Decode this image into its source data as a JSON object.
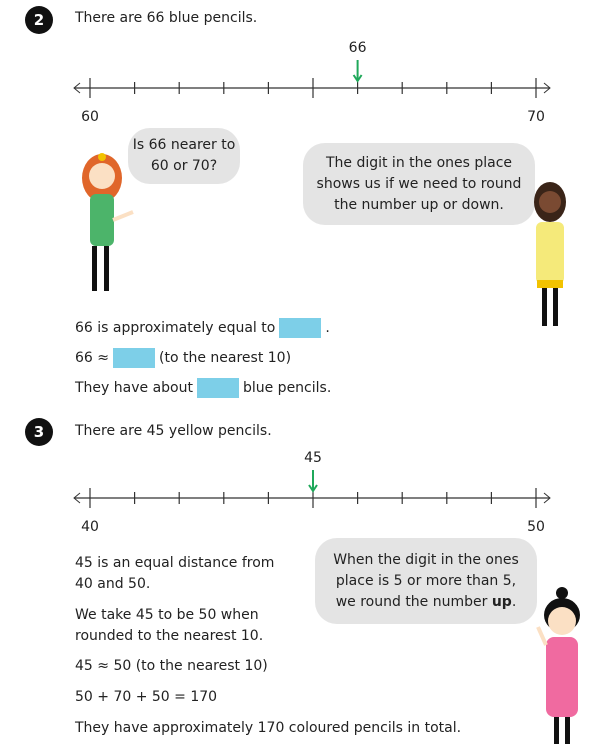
{
  "q2": {
    "number": "2",
    "title": "There are 66 blue pencils.",
    "numberline": {
      "start": 60,
      "end": 70,
      "marked": 66,
      "start_label": "60",
      "end_label": "70",
      "marked_label": "66"
    },
    "girl_bubble": "Is 66 nearer to 60 or 70?",
    "right_bubble": "The digit in the ones place shows us if we need to round the number up or down.",
    "line1_pre": "66 is approximately equal to",
    "line1_post": ".",
    "line2_pre": "66 ≈",
    "line2_post": "(to the nearest 10)",
    "line3_pre": "They have about",
    "line3_post": "blue pencils."
  },
  "q3": {
    "number": "3",
    "title": "There are 45 yellow pencils.",
    "numberline": {
      "start": 40,
      "end": 50,
      "marked": 45,
      "start_label": "40",
      "end_label": "50",
      "marked_label": "45"
    },
    "p1": "45 is an equal distance from 40 and 50.",
    "p2": "We take 45 to be 50 when rounded to the nearest 10.",
    "p3": "45 ≈ 50 (to the nearest 10)",
    "p4": "50 + 70 + 50 = 170",
    "p5": "They have approximately 170 coloured pencils in total.",
    "bubble_pre": "When the digit in the ones place is 5 or more than 5, we round the number ",
    "bubble_bold": "up",
    "bubble_post": "."
  },
  "colors": {
    "answer_box": "#7dcfe8",
    "arrow": "#1fa85a",
    "bubble": "#e4e4e4"
  }
}
